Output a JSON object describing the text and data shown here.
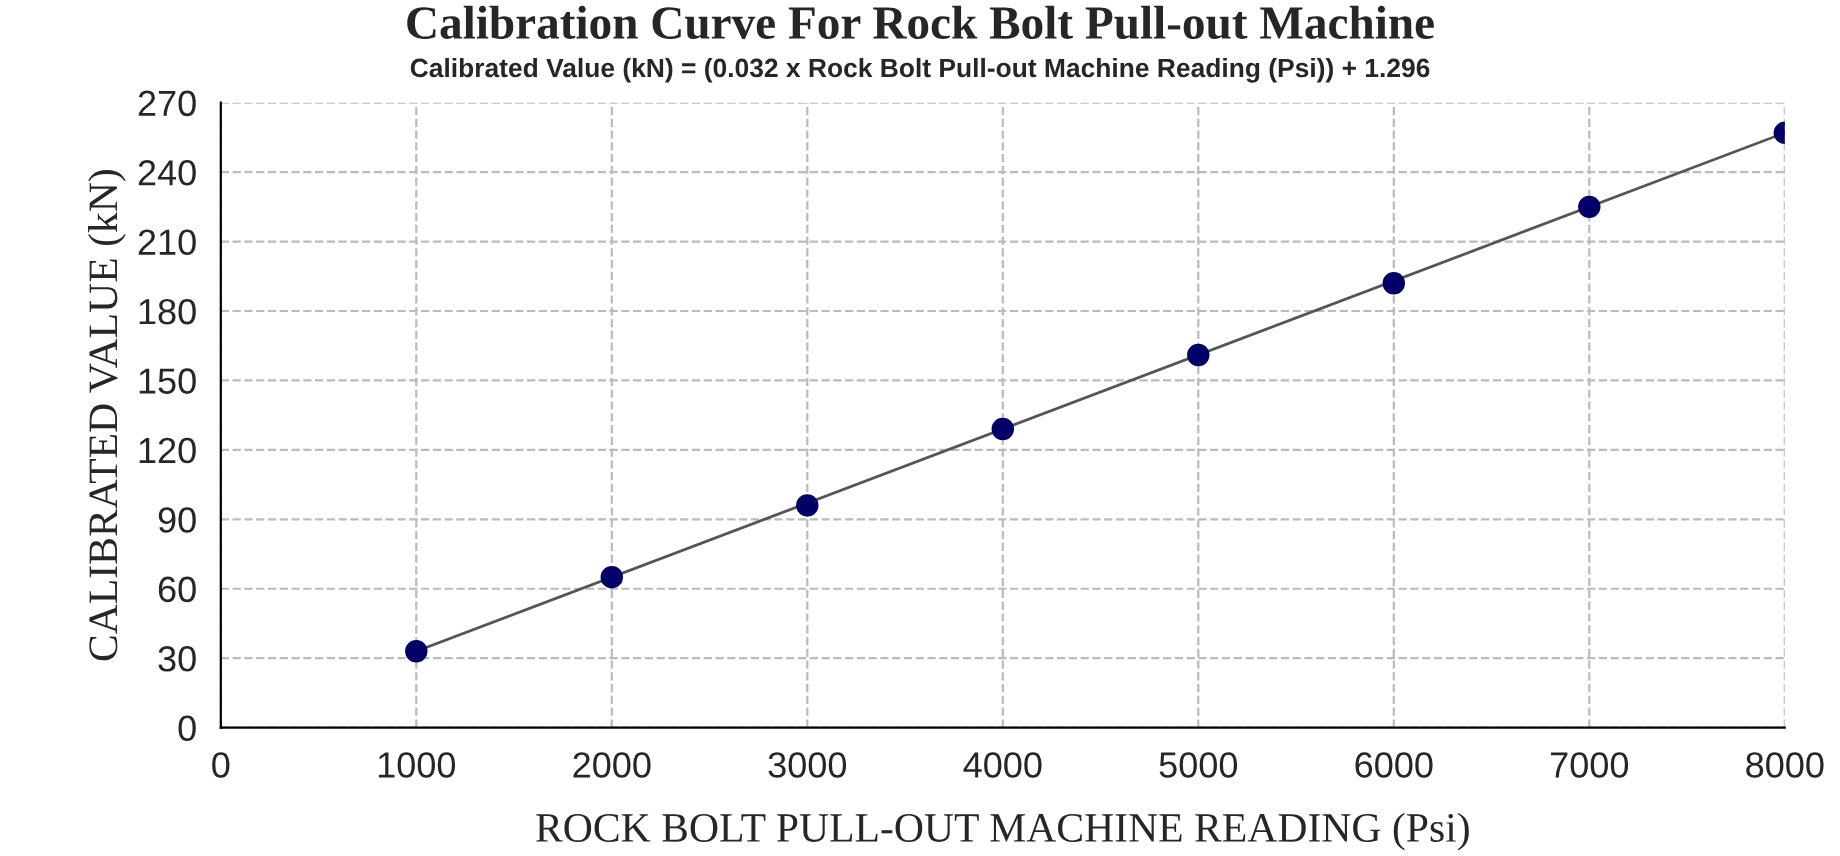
{
  "chart_data": {
    "type": "scatter",
    "title": "Calibration Curve For Rock Bolt Pull-out Machine",
    "subtitle": "Calibrated Value (kN) = (0.032 x Rock Bolt Pull-out Machine Reading (Psi)) + 1.296",
    "xlabel": "ROCK BOLT PULL-OUT MACHINE READING (Psi)",
    "ylabel": "CALIBRATED VALUE (kN)",
    "x": [
      1000,
      2000,
      3000,
      4000,
      5000,
      6000,
      7000,
      8000
    ],
    "series": [
      {
        "color": "#000066",
        "values": [
          33,
          65,
          96,
          129,
          161,
          192,
          225,
          257
        ],
        "marker": "circle"
      },
      {
        "type": "line",
        "color": "#555555",
        "x": [
          1000,
          8000
        ],
        "values": [
          33,
          257
        ],
        "marker": "none",
        "line_style": "solid"
      }
    ],
    "xlim": [
      0,
      8000
    ],
    "xticks": [
      0,
      1000,
      2000,
      3000,
      4000,
      5000,
      6000,
      7000,
      8000
    ],
    "ylim": [
      0,
      270
    ],
    "yticks": [
      0,
      30,
      60,
      90,
      120,
      150,
      180,
      210,
      240,
      270
    ],
    "grid": true,
    "legend": false
  }
}
